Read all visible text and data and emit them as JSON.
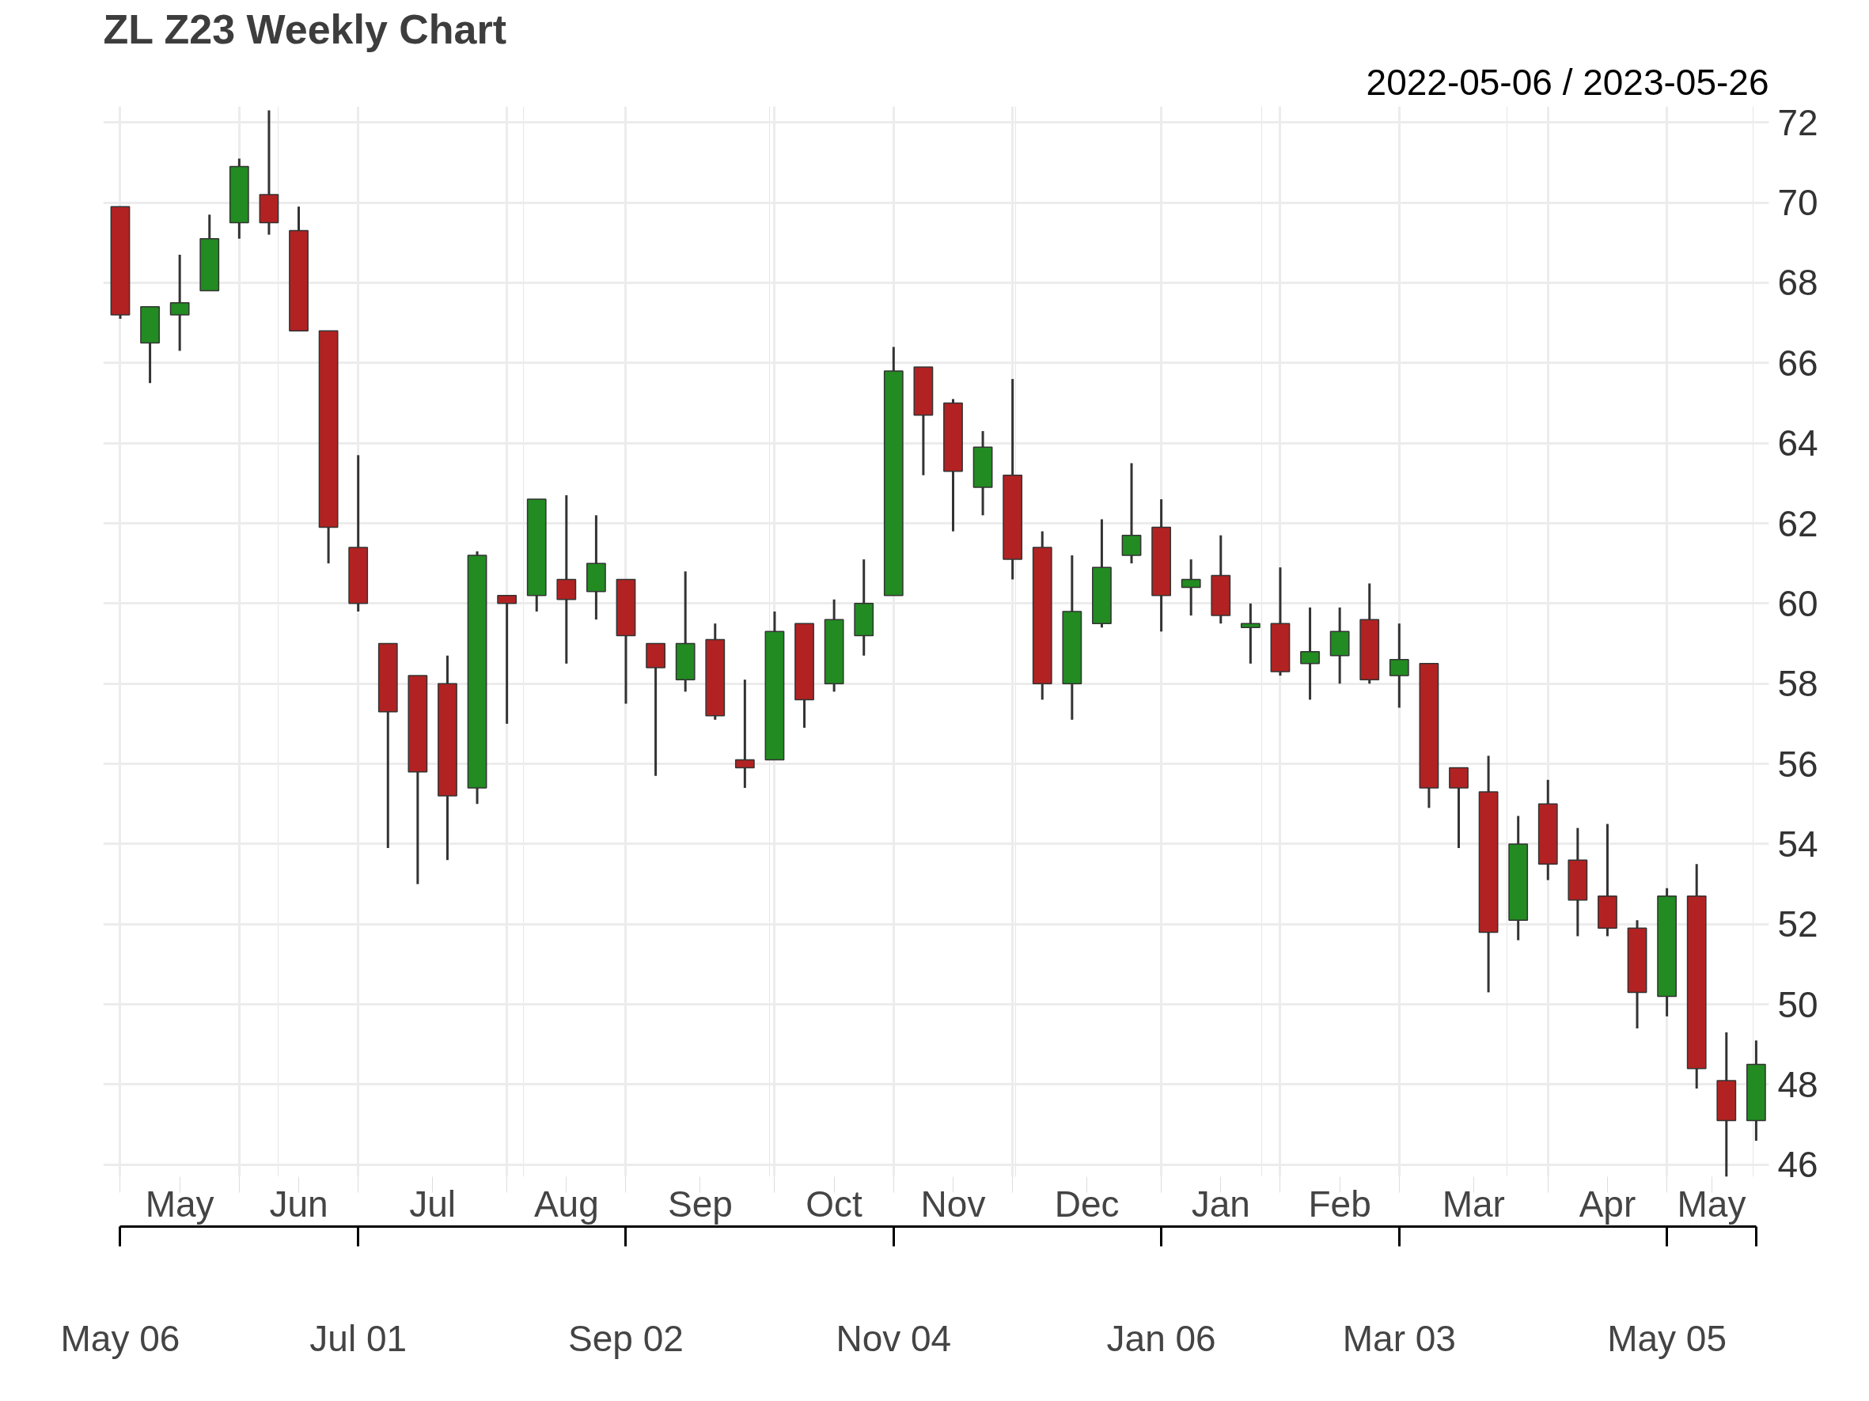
{
  "chart_data": {
    "type": "candlestick",
    "title": "ZL Z23 Weekly Chart",
    "subtitle": "2022-05-06 / 2023-05-26",
    "x": [
      "2022-05-06",
      "2022-05-13",
      "2022-05-20",
      "2022-05-27",
      "2022-06-03",
      "2022-06-10",
      "2022-06-17",
      "2022-06-24",
      "2022-07-01",
      "2022-07-08",
      "2022-07-15",
      "2022-07-22",
      "2022-07-29",
      "2022-08-05",
      "2022-08-12",
      "2022-08-19",
      "2022-08-26",
      "2022-09-02",
      "2022-09-09",
      "2022-09-16",
      "2022-09-23",
      "2022-09-30",
      "2022-10-07",
      "2022-10-14",
      "2022-10-21",
      "2022-10-28",
      "2022-11-04",
      "2022-11-11",
      "2022-11-18",
      "2022-11-25",
      "2022-12-02",
      "2022-12-09",
      "2022-12-16",
      "2022-12-23",
      "2022-12-30",
      "2023-01-06",
      "2023-01-13",
      "2023-01-20",
      "2023-01-27",
      "2023-02-03",
      "2023-02-10",
      "2023-02-17",
      "2023-02-24",
      "2023-03-03",
      "2023-03-10",
      "2023-03-17",
      "2023-03-24",
      "2023-03-31",
      "2023-04-07",
      "2023-04-14",
      "2023-04-21",
      "2023-04-28",
      "2023-05-05",
      "2023-05-12",
      "2023-05-19",
      "2023-05-26"
    ],
    "ohlc": [
      [
        69.9,
        69.9,
        67.1,
        67.2
      ],
      [
        66.5,
        67.4,
        65.5,
        67.4
      ],
      [
        67.2,
        68.7,
        66.3,
        67.5
      ],
      [
        67.8,
        69.7,
        67.8,
        69.1
      ],
      [
        69.5,
        71.1,
        69.1,
        70.9
      ],
      [
        70.2,
        72.3,
        69.2,
        69.5
      ],
      [
        69.3,
        69.9,
        66.8,
        66.8
      ],
      [
        66.8,
        66.8,
        61.0,
        61.9
      ],
      [
        61.4,
        63.7,
        59.8,
        60.0
      ],
      [
        59.0,
        59.0,
        53.9,
        57.3
      ],
      [
        58.2,
        58.2,
        53.0,
        55.8
      ],
      [
        58.0,
        58.7,
        53.6,
        55.2
      ],
      [
        55.4,
        61.3,
        55.0,
        61.2
      ],
      [
        60.2,
        60.2,
        57.0,
        60.0
      ],
      [
        60.2,
        62.6,
        59.8,
        62.6
      ],
      [
        60.6,
        62.7,
        58.5,
        60.1
      ],
      [
        60.3,
        62.2,
        59.6,
        61.0
      ],
      [
        60.6,
        60.6,
        57.5,
        59.2
      ],
      [
        59.0,
        59.0,
        55.7,
        58.4
      ],
      [
        58.1,
        60.8,
        57.8,
        59.0
      ],
      [
        59.1,
        59.5,
        57.1,
        57.2
      ],
      [
        56.1,
        58.1,
        55.4,
        55.9
      ],
      [
        56.1,
        59.8,
        56.1,
        59.3
      ],
      [
        59.5,
        59.5,
        56.9,
        57.6
      ],
      [
        58.0,
        60.1,
        57.8,
        59.6
      ],
      [
        59.2,
        61.1,
        58.7,
        60.0
      ],
      [
        60.2,
        66.4,
        60.2,
        65.8
      ],
      [
        65.9,
        65.9,
        63.2,
        64.7
      ],
      [
        65.0,
        65.1,
        61.8,
        63.3
      ],
      [
        62.9,
        64.3,
        62.2,
        63.9
      ],
      [
        63.2,
        65.6,
        60.6,
        61.1
      ],
      [
        61.4,
        61.8,
        57.6,
        58.0
      ],
      [
        58.0,
        61.2,
        57.1,
        59.8
      ],
      [
        59.5,
        62.1,
        59.4,
        60.9
      ],
      [
        61.2,
        63.5,
        61.0,
        61.7
      ],
      [
        61.9,
        62.6,
        59.3,
        60.2
      ],
      [
        60.4,
        61.1,
        59.7,
        60.6
      ],
      [
        60.7,
        61.7,
        59.5,
        59.7
      ],
      [
        59.4,
        60.0,
        58.5,
        59.5
      ],
      [
        59.5,
        60.9,
        58.2,
        58.3
      ],
      [
        58.5,
        59.9,
        57.6,
        58.8
      ],
      [
        58.7,
        59.9,
        58.0,
        59.3
      ],
      [
        59.6,
        60.5,
        58.0,
        58.1
      ],
      [
        58.2,
        59.5,
        57.4,
        58.6
      ],
      [
        58.5,
        58.5,
        54.9,
        55.4
      ],
      [
        55.9,
        55.9,
        53.9,
        55.4
      ],
      [
        55.3,
        56.2,
        50.3,
        51.8
      ],
      [
        52.1,
        54.7,
        51.6,
        54.0
      ],
      [
        55.0,
        55.6,
        53.1,
        53.5
      ],
      [
        53.6,
        54.4,
        51.7,
        52.6
      ],
      [
        52.7,
        54.5,
        51.7,
        51.9
      ],
      [
        51.9,
        52.1,
        49.4,
        50.3
      ],
      [
        50.2,
        52.9,
        49.7,
        52.7
      ],
      [
        52.7,
        53.5,
        47.9,
        48.4
      ],
      [
        48.1,
        49.3,
        45.7,
        47.1
      ],
      [
        47.1,
        49.1,
        46.6,
        48.5
      ]
    ],
    "colors": [
      "#b22222",
      "#228b22",
      "#228b22",
      "#228b22",
      "#228b22",
      "#b22222",
      "#b22222",
      "#b22222",
      "#b22222",
      "#b22222",
      "#b22222",
      "#b22222",
      "#228b22",
      "#b22222",
      "#228b22",
      "#b22222",
      "#228b22",
      "#b22222",
      "#b22222",
      "#228b22",
      "#b22222",
      "#b22222",
      "#228b22",
      "#b22222",
      "#228b22",
      "#228b22",
      "#228b22",
      "#b22222",
      "#b22222",
      "#228b22",
      "#b22222",
      "#b22222",
      "#228b22",
      "#228b22",
      "#228b22",
      "#b22222",
      "#228b22",
      "#b22222",
      "#228b22",
      "#b22222",
      "#228b22",
      "#228b22",
      "#b22222",
      "#228b22",
      "#b22222",
      "#b22222",
      "#b22222",
      "#228b22",
      "#b22222",
      "#b22222",
      "#b22222",
      "#b22222",
      "#228b22",
      "#b22222",
      "#b22222",
      "#228b22"
    ],
    "xlim": [
      "2022-05-02",
      "2023-05-29"
    ],
    "x2lim": [
      "2022-05-02",
      "2023-05-29"
    ],
    "xticks": [
      {
        "value": "2022-05-06",
        "label": "May 06"
      },
      {
        "value": "2022-07-01",
        "label": "Jul 01"
      },
      {
        "value": "2022-09-02",
        "label": "Sep 02"
      },
      {
        "value": "2022-11-04",
        "label": "Nov 04"
      },
      {
        "value": "2023-01-06",
        "label": "Jan 06"
      },
      {
        "value": "2023-03-03",
        "label": "Mar 03"
      },
      {
        "value": "2023-05-05",
        "label": "May 05"
      },
      {
        "value": "2023-05-26",
        "label": null
      }
    ],
    "x2ticks": [
      {
        "value": "2022-05-06",
        "label": null
      },
      {
        "value": "2022-05-20",
        "label": "May"
      },
      {
        "value": "2022-06-03",
        "label": null
      },
      {
        "value": "2022-06-17",
        "label": "Jun"
      },
      {
        "value": "2022-07-01",
        "label": null
      },
      {
        "value": "2022-07-18T12:00",
        "label": "Jul"
      },
      {
        "value": "2022-08-05",
        "label": null
      },
      {
        "value": "2022-08-19",
        "label": "Aug"
      },
      {
        "value": "2022-09-02",
        "label": null
      },
      {
        "value": "2022-09-19T12:00",
        "label": "Sep"
      },
      {
        "value": "2022-10-07",
        "label": null
      },
      {
        "value": "2022-10-21",
        "label": "Oct"
      },
      {
        "value": "2022-11-04",
        "label": null
      },
      {
        "value": "2022-11-18",
        "label": "Nov"
      },
      {
        "value": "2022-12-02",
        "label": null
      },
      {
        "value": "2022-12-19T12:00",
        "label": "Dec"
      },
      {
        "value": "2023-01-06",
        "label": null
      },
      {
        "value": "2023-01-20",
        "label": "Jan"
      },
      {
        "value": "2023-02-03",
        "label": null
      },
      {
        "value": "2023-02-17",
        "label": "Feb"
      },
      {
        "value": "2023-03-03",
        "label": null
      },
      {
        "value": "2023-03-20T12:00",
        "label": "Mar"
      },
      {
        "value": "2023-04-07",
        "label": null
      },
      {
        "value": "2023-04-21",
        "label": "Apr"
      },
      {
        "value": "2023-05-05",
        "label": null
      },
      {
        "value": "2023-05-15T12:00",
        "label": "May"
      }
    ],
    "ylim": [
      45.7,
      72.4
    ],
    "yticks": [
      46,
      48,
      50,
      52,
      54,
      56,
      58,
      60,
      62,
      64,
      66,
      68,
      70,
      72
    ],
    "grid": true
  }
}
